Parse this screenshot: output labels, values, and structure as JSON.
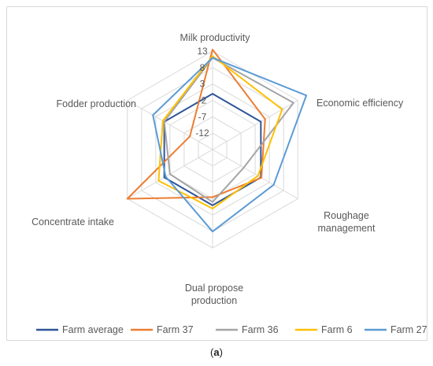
{
  "caption": {
    "open": "(",
    "letter": "a",
    "close": ")"
  },
  "chart_data": {
    "type": "radar",
    "axes": [
      "Milk productivity",
      "Economic efficiency",
      "Roughage management",
      "Dual propose production",
      "Concentrate intake",
      "Fodder production"
    ],
    "axis_label_lines": [
      [
        "Milk productivity"
      ],
      [
        "Economic efficiency"
      ],
      [
        "Roughage",
        "management"
      ],
      [
        "Dual propose",
        "production"
      ],
      [
        "Concentrate intake"
      ],
      [
        "Fodder production"
      ]
    ],
    "ticks": [
      13,
      8,
      3,
      -2,
      -7,
      -12
    ],
    "tick_labels": [
      "13",
      "8",
      "3",
      "-2",
      "-7",
      "-12"
    ],
    "range": [
      -17,
      13
    ],
    "grid": true,
    "legend_position": "bottom",
    "series": [
      {
        "name": "Farm average",
        "color": "#2F5597",
        "values": [
          0,
          0,
          0,
          0,
          0,
          0
        ]
      },
      {
        "name": "Farm 37",
        "color": "#ED7D31",
        "values": [
          13.5,
          1.5,
          0.2,
          -2.5,
          13,
          -9
        ]
      },
      {
        "name": "Farm 36",
        "color": "#A5A5A5",
        "values": [
          11,
          11.5,
          -6,
          -1,
          -2,
          0
        ]
      },
      {
        "name": "Farm 6",
        "color": "#FFC000",
        "values": [
          11.5,
          7.5,
          -1,
          1,
          2,
          0.5
        ]
      },
      {
        "name": "Farm 27",
        "color": "#5B9BD5",
        "values": [
          11,
          16,
          4.5,
          8,
          -0.5,
          4
        ]
      }
    ]
  }
}
